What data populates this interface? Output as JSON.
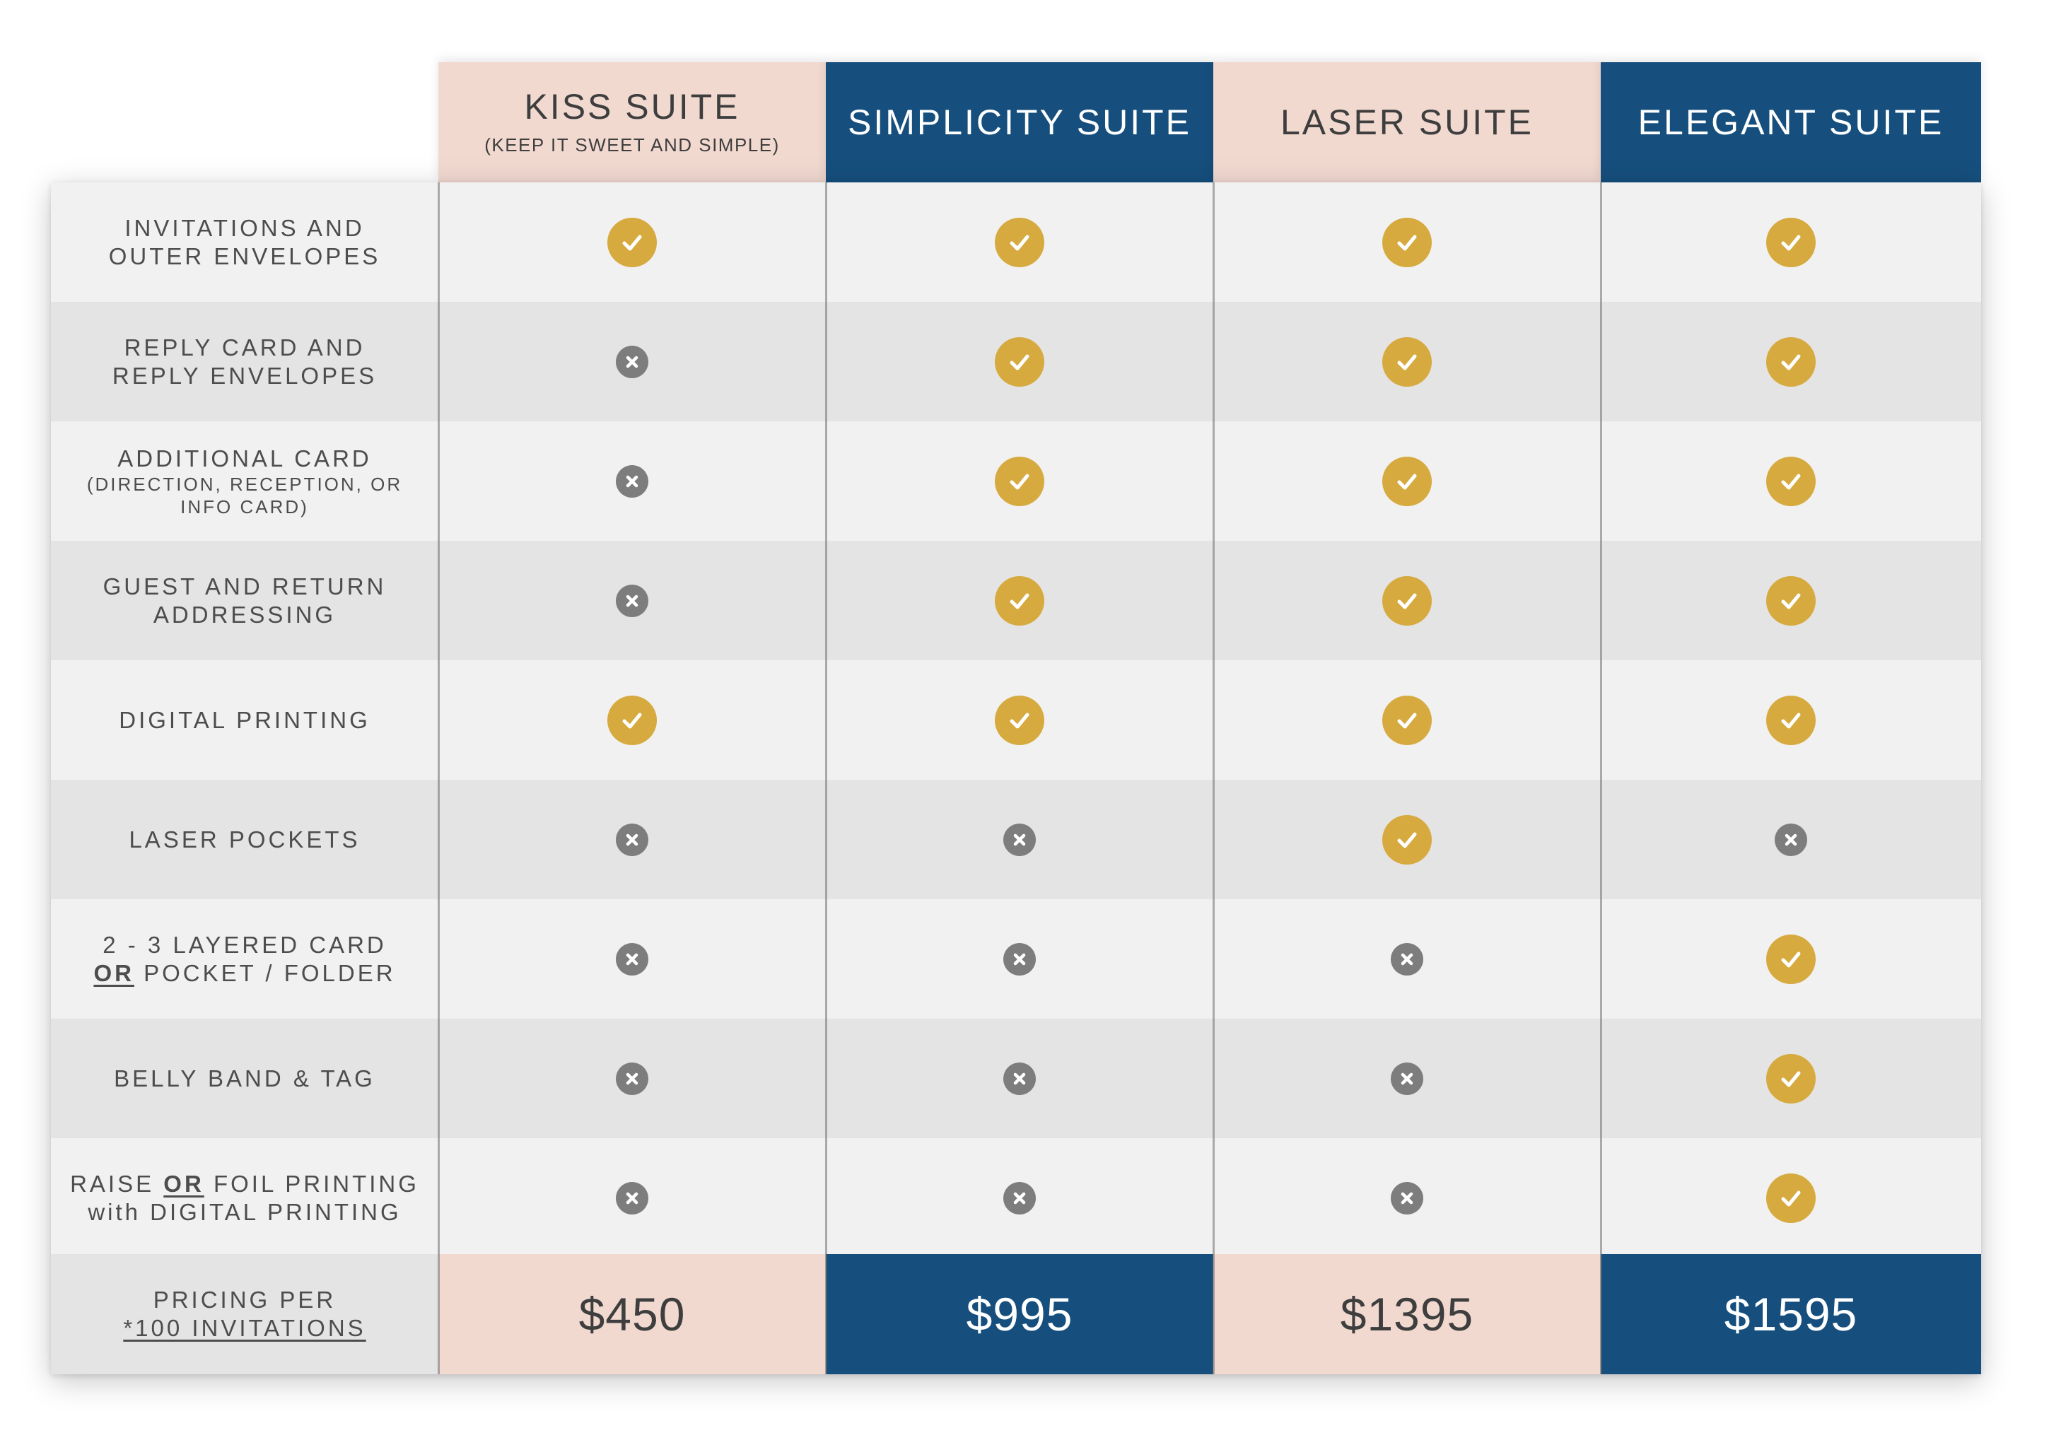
{
  "suites": [
    {
      "name": "KISS SUITE",
      "subtitle": "(KEEP IT SWEET AND SIMPLE)",
      "price": "$450",
      "theme": "pink"
    },
    {
      "name": "SIMPLICITY SUITE",
      "subtitle": "",
      "price": "$995",
      "theme": "navy"
    },
    {
      "name": "LASER SUITE",
      "subtitle": "",
      "price": "$1395",
      "theme": "pink"
    },
    {
      "name": "ELEGANT SUITE",
      "subtitle": "",
      "price": "$1595",
      "theme": "navy"
    }
  ],
  "features": [
    {
      "lines": [
        "INVITATIONS AND",
        "OUTER ENVELOPES"
      ],
      "included": [
        true,
        true,
        true,
        true
      ]
    },
    {
      "lines": [
        "REPLY CARD AND",
        "REPLY ENVELOPES"
      ],
      "included": [
        false,
        true,
        true,
        true
      ]
    },
    {
      "lines": [
        "ADDITIONAL CARD"
      ],
      "sub_lines": [
        "(DIRECTION, RECEPTION, OR",
        "INFO CARD)"
      ],
      "included": [
        false,
        true,
        true,
        true
      ]
    },
    {
      "lines": [
        "GUEST AND RETURN",
        "ADDRESSING"
      ],
      "included": [
        false,
        true,
        true,
        true
      ]
    },
    {
      "lines": [
        "DIGITAL PRINTING"
      ],
      "included": [
        true,
        true,
        true,
        true
      ]
    },
    {
      "lines": [
        "LASER POCKETS"
      ],
      "included": [
        false,
        false,
        true,
        false
      ]
    },
    {
      "lines": [
        "2 - 3 LAYERED CARD"
      ],
      "line2_underlined": "OR",
      "line2_rest": " POCKET / FOLDER",
      "included": [
        false,
        false,
        false,
        true
      ]
    },
    {
      "lines": [
        "BELLY BAND & TAG"
      ],
      "included": [
        false,
        false,
        false,
        true
      ]
    },
    {
      "line1_before": "RAISE ",
      "line1_underlined": "OR",
      "line1_after": " FOIL PRINTING",
      "lines": [
        "with DIGITAL PRINTING"
      ],
      "included": [
        false,
        false,
        false,
        true
      ]
    }
  ],
  "pricing_label": {
    "line1": "PRICING PER",
    "line2": "*100 INVITATIONS"
  },
  "colors": {
    "pink": "#f1d9d0",
    "navy": "#164f7d",
    "check": "#d6aa3f",
    "cross": "#7d7d7d",
    "row_light": "#f1f1f1",
    "row_dark": "#e4e4e4"
  },
  "icons": {
    "included": "check-circle-icon",
    "excluded": "x-circle-icon"
  }
}
